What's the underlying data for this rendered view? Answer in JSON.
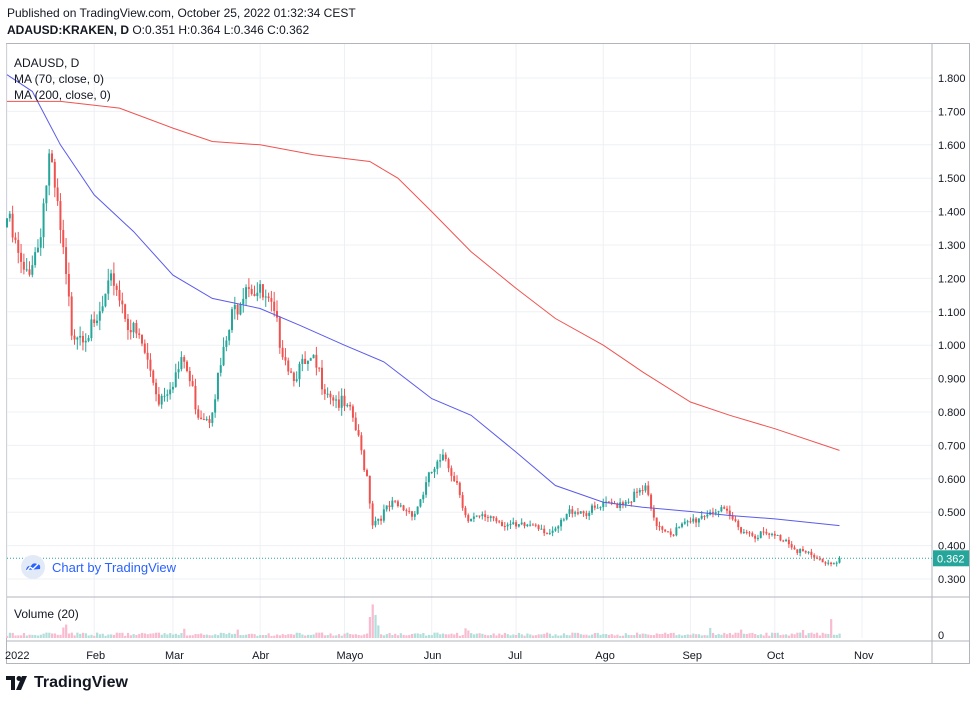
{
  "header": {
    "published": "Published on TradingView.com, October 25, 2022 01:32:34 CEST",
    "symbol": "ADAUSD:KRAKEN, D",
    "ohlc": "O:0.351 H:0.364 L:0.346 C:0.362"
  },
  "legend": {
    "title": "ADAUSD, D",
    "ma70": "MA (70, close, 0)",
    "ma200": "MA (200, close, 0)",
    "volume": "Volume (20)"
  },
  "watermark": "Chart by TradingView",
  "footer": "TradingView",
  "colors": {
    "up": "#26a69a",
    "down": "#ef5350",
    "ma70": "#5b5bea",
    "ma200": "#ef5350",
    "last_price_badge": "#26a69a",
    "grid": "#eef0f4",
    "text": "#131722"
  },
  "chart_data": {
    "type": "candlestick",
    "y_axis": {
      "ticks": [
        "0.300",
        "0.400",
        "0.500",
        "0.600",
        "0.700",
        "0.800",
        "0.900",
        "1.000",
        "1.100",
        "1.200",
        "1.300",
        "1.400",
        "1.500",
        "1.600",
        "1.700",
        "1.800"
      ],
      "range": [
        0.23,
        1.88
      ]
    },
    "x_axis": {
      "ticks": [
        "2022",
        "Feb",
        "Mar",
        "Abr",
        "Mayo",
        "Jun",
        "Jul",
        "Ago",
        "Sep",
        "Oct",
        "Nov"
      ]
    },
    "volume_axis": {
      "ticks": [
        "0"
      ]
    },
    "last_price": "0.362",
    "waypoints": [
      [
        "2022-01-01",
        1.38
      ],
      [
        "2022-01-07",
        1.2
      ],
      [
        "2022-01-12",
        1.3
      ],
      [
        "2022-01-16",
        1.55
      ],
      [
        "2022-01-19",
        1.4
      ],
      [
        "2022-01-24",
        1.05
      ],
      [
        "2022-02-01",
        1.04
      ],
      [
        "2022-02-08",
        1.2
      ],
      [
        "2022-02-14",
        1.05
      ],
      [
        "2022-02-18",
        1.0
      ],
      [
        "2022-02-24",
        0.84
      ],
      [
        "2022-03-05",
        0.95
      ],
      [
        "2022-03-10",
        0.8
      ],
      [
        "2022-03-14",
        0.79
      ],
      [
        "2022-03-22",
        1.08
      ],
      [
        "2022-03-27",
        1.2
      ],
      [
        "2022-04-01",
        1.15
      ],
      [
        "2022-04-05",
        1.1
      ],
      [
        "2022-04-12",
        0.92
      ],
      [
        "2022-04-20",
        0.94
      ],
      [
        "2022-04-25",
        0.87
      ],
      [
        "2022-05-04",
        0.78
      ],
      [
        "2022-05-09",
        0.61
      ],
      [
        "2022-05-11",
        0.47
      ],
      [
        "2022-05-18",
        0.52
      ],
      [
        "2022-05-26",
        0.5
      ],
      [
        "2022-06-01",
        0.62
      ],
      [
        "2022-06-06",
        0.66
      ],
      [
        "2022-06-10",
        0.59
      ],
      [
        "2022-06-14",
        0.47
      ],
      [
        "2022-06-22",
        0.49
      ],
      [
        "2022-07-01",
        0.45
      ],
      [
        "2022-07-08",
        0.47
      ],
      [
        "2022-07-14",
        0.43
      ],
      [
        "2022-07-21",
        0.51
      ],
      [
        "2022-07-27",
        0.5
      ],
      [
        "2022-08-03",
        0.52
      ],
      [
        "2022-08-13",
        0.55
      ],
      [
        "2022-08-16",
        0.57
      ],
      [
        "2022-08-19",
        0.47
      ],
      [
        "2022-08-26",
        0.44
      ],
      [
        "2022-09-01",
        0.47
      ],
      [
        "2022-09-09",
        0.51
      ],
      [
        "2022-09-14",
        0.49
      ],
      [
        "2022-09-21",
        0.44
      ],
      [
        "2022-09-28",
        0.43
      ],
      [
        "2022-10-05",
        0.42
      ],
      [
        "2022-10-09",
        0.39
      ],
      [
        "2022-10-15",
        0.36
      ],
      [
        "2022-10-21",
        0.348
      ],
      [
        "2022-10-24",
        0.362
      ]
    ],
    "ma70": [
      [
        "2022-01-01",
        1.81
      ],
      [
        "2022-01-10",
        1.76
      ],
      [
        "2022-01-20",
        1.6
      ],
      [
        "2022-02-01",
        1.45
      ],
      [
        "2022-02-15",
        1.34
      ],
      [
        "2022-03-01",
        1.21
      ],
      [
        "2022-03-15",
        1.14
      ],
      [
        "2022-04-01",
        1.11
      ],
      [
        "2022-04-15",
        1.06
      ],
      [
        "2022-05-01",
        1.0
      ],
      [
        "2022-05-15",
        0.95
      ],
      [
        "2022-06-01",
        0.84
      ],
      [
        "2022-06-15",
        0.79
      ],
      [
        "2022-07-01",
        0.68
      ],
      [
        "2022-07-15",
        0.58
      ],
      [
        "2022-08-01",
        0.53
      ],
      [
        "2022-08-15",
        0.515
      ],
      [
        "2022-09-01",
        0.502
      ],
      [
        "2022-09-15",
        0.49
      ],
      [
        "2022-10-01",
        0.48
      ],
      [
        "2022-10-24",
        0.46
      ]
    ],
    "ma200": [
      [
        "2022-01-01",
        1.73
      ],
      [
        "2022-01-20",
        1.73
      ],
      [
        "2022-02-10",
        1.71
      ],
      [
        "2022-03-01",
        1.65
      ],
      [
        "2022-03-15",
        1.61
      ],
      [
        "2022-04-01",
        1.6
      ],
      [
        "2022-04-20",
        1.57
      ],
      [
        "2022-05-10",
        1.55
      ],
      [
        "2022-05-20",
        1.5
      ],
      [
        "2022-06-01",
        1.4
      ],
      [
        "2022-06-15",
        1.28
      ],
      [
        "2022-07-01",
        1.17
      ],
      [
        "2022-07-15",
        1.08
      ],
      [
        "2022-08-01",
        1.0
      ],
      [
        "2022-08-15",
        0.92
      ],
      [
        "2022-09-01",
        0.83
      ],
      [
        "2022-09-15",
        0.79
      ],
      [
        "2022-10-01",
        0.75
      ],
      [
        "2022-10-24",
        0.685
      ]
    ],
    "volume_spikes": [
      [
        "2022-05-10",
        5.0
      ],
      [
        "2022-05-11",
        8.0
      ],
      [
        "2022-05-12",
        5.5
      ],
      [
        "2022-05-13",
        3.0
      ],
      [
        "2022-01-22",
        3.2
      ],
      [
        "2022-01-21",
        2.5
      ],
      [
        "2022-03-05",
        2.2
      ],
      [
        "2022-03-24",
        2.0
      ],
      [
        "2022-06-13",
        2.3
      ],
      [
        "2022-06-14",
        1.8
      ],
      [
        "2022-10-21",
        4.5
      ],
      [
        "2022-09-08",
        2.4
      ],
      [
        "2022-09-19",
        2.0
      ],
      [
        "2022-10-11",
        1.9
      ]
    ]
  }
}
